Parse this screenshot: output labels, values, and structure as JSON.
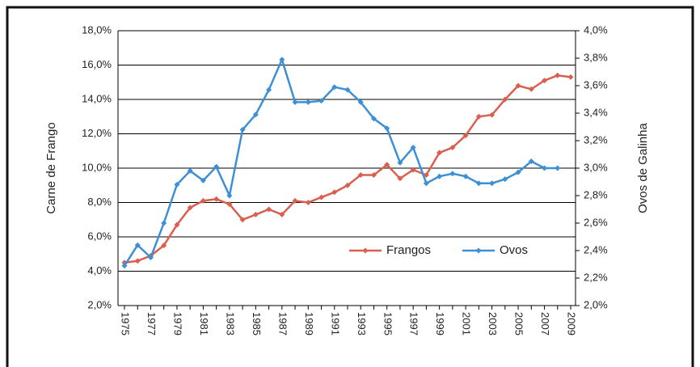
{
  "chart_data": {
    "type": "line",
    "y_label": "Carne de Frango",
    "y2_label": "Ovos de Galinha",
    "categories": [
      "1975",
      null,
      "1977",
      null,
      "1979",
      null,
      "1981",
      null,
      "1983",
      null,
      "1985",
      null,
      "1987",
      null,
      "1989",
      null,
      "1991",
      null,
      "1993",
      null,
      "1995",
      null,
      "1997",
      null,
      "1999",
      null,
      "2001",
      null,
      "2003",
      null,
      "2005",
      null,
      "2007",
      null,
      "2009"
    ],
    "series": [
      {
        "name": "Frangos",
        "color": "#d9604f",
        "axis": "y",
        "values": [
          4.5,
          4.6,
          4.9,
          5.5,
          6.7,
          7.7,
          8.1,
          8.2,
          7.9,
          7.0,
          7.3,
          7.6,
          7.3,
          8.1,
          8.0,
          8.3,
          8.6,
          9.0,
          9.6,
          9.6,
          10.2,
          9.4,
          9.9,
          9.6,
          10.9,
          11.2,
          11.9,
          13.0,
          13.1,
          14.0,
          14.8,
          14.6,
          15.1,
          15.4,
          15.3
        ]
      },
      {
        "name": "Ovos",
        "color": "#3d8fd6",
        "axis": "y2",
        "values": [
          2.29,
          2.44,
          2.35,
          2.6,
          2.88,
          2.98,
          2.91,
          3.01,
          2.8,
          3.28,
          3.39,
          3.57,
          3.79,
          3.48,
          3.48,
          3.49,
          3.59,
          3.57,
          3.48,
          3.36,
          3.29,
          3.04,
          3.15,
          2.89,
          2.94,
          2.96,
          2.94,
          2.89,
          2.89,
          2.92,
          2.97,
          3.05,
          3.0,
          3.0,
          null
        ]
      }
    ],
    "ylim": [
      2,
      18
    ],
    "yticks": [
      {
        "value": 2,
        "label": "2,0%"
      },
      {
        "value": 4,
        "label": "4,0%"
      },
      {
        "value": 6,
        "label": "6,0%"
      },
      {
        "value": 8,
        "label": "8,0%"
      },
      {
        "value": 10,
        "label": "10,0%"
      },
      {
        "value": 12,
        "label": "12,0%"
      },
      {
        "value": 14,
        "label": "14,0%"
      },
      {
        "value": 16,
        "label": "16,0%"
      },
      {
        "value": 18,
        "label": "18,0%"
      }
    ],
    "y2lim": [
      2,
      4
    ],
    "y2ticks": [
      {
        "value": 2.0,
        "label": "2,0%"
      },
      {
        "value": 2.2,
        "label": "2,2%"
      },
      {
        "value": 2.4,
        "label": "2,4%"
      },
      {
        "value": 2.6,
        "label": "2,6%"
      },
      {
        "value": 2.8,
        "label": "2,8%"
      },
      {
        "value": 3.0,
        "label": "3,0%"
      },
      {
        "value": 3.2,
        "label": "3,2%"
      },
      {
        "value": 3.4,
        "label": "3,4%"
      },
      {
        "value": 3.6,
        "label": "3,6%"
      },
      {
        "value": 3.8,
        "label": "3,8%"
      },
      {
        "value": 4.0,
        "label": "4,0%"
      }
    ],
    "grid": true,
    "legend": "lower-right"
  }
}
